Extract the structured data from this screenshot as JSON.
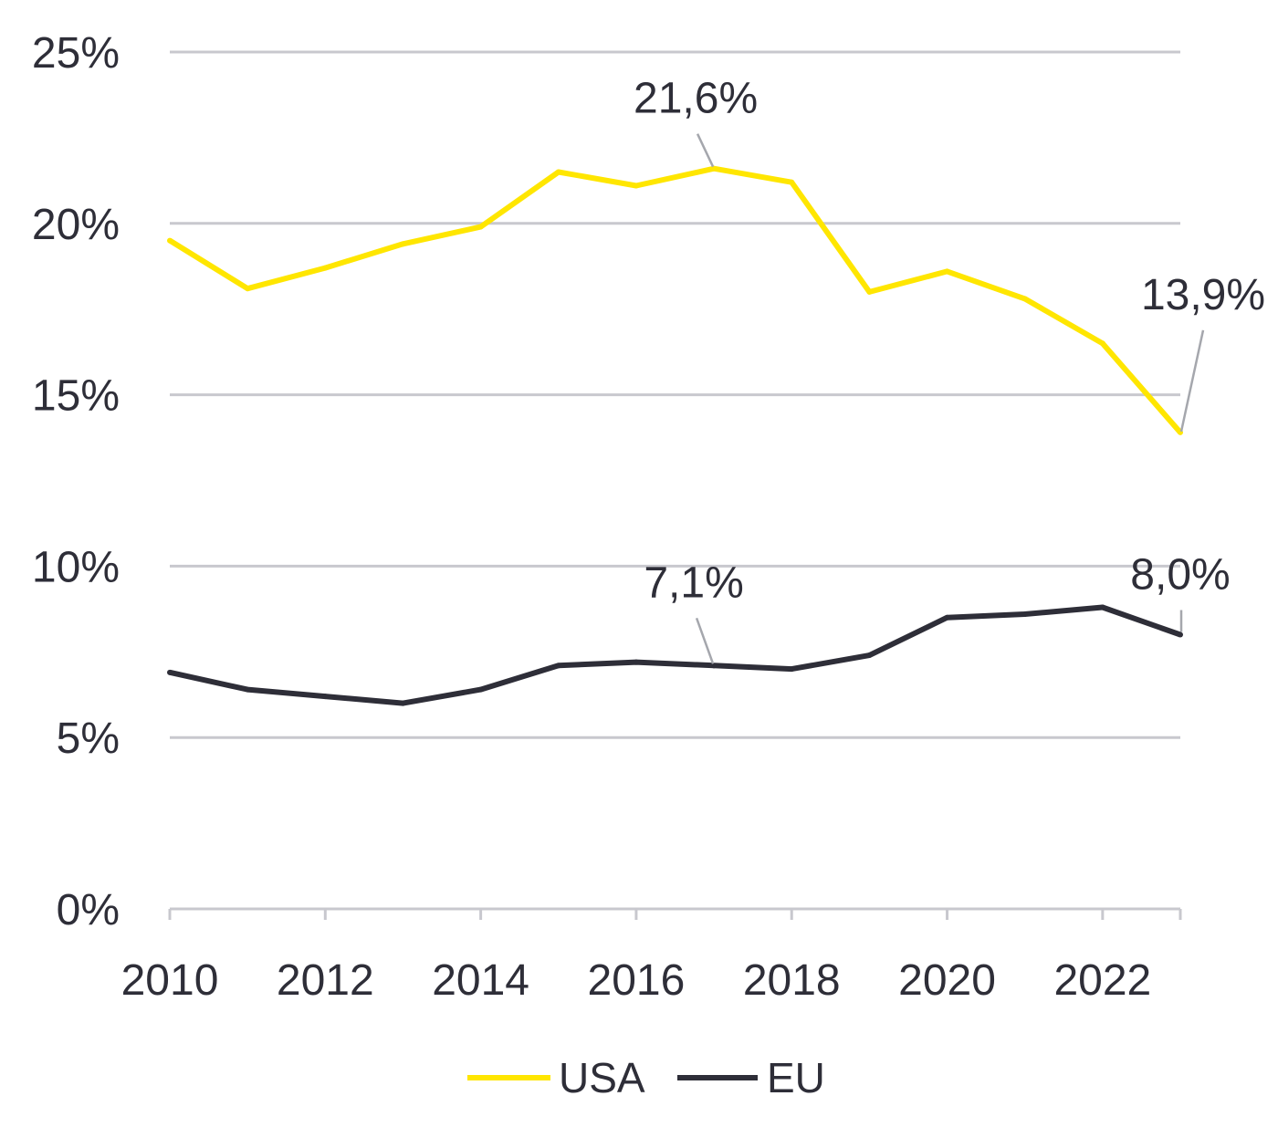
{
  "chart_data": {
    "type": "line",
    "title": "",
    "xlabel": "",
    "ylabel": "",
    "x": [
      2010,
      2011,
      2012,
      2013,
      2014,
      2015,
      2016,
      2017,
      2018,
      2019,
      2020,
      2021,
      2022,
      2023
    ],
    "series": [
      {
        "name": "USA",
        "color": "#FFE600",
        "values": [
          19.5,
          18.1,
          18.7,
          19.4,
          19.9,
          21.5,
          21.1,
          21.6,
          21.2,
          18.0,
          18.6,
          17.8,
          16.5,
          13.9
        ]
      },
      {
        "name": "EU",
        "color": "#2E2E38",
        "values": [
          6.9,
          6.4,
          6.2,
          6.0,
          6.4,
          7.1,
          7.2,
          7.1,
          7.0,
          7.4,
          8.5,
          8.6,
          8.8,
          8.0
        ]
      }
    ],
    "xlim": [
      2010,
      2023
    ],
    "ylim": [
      0,
      25
    ],
    "xticks": [
      2010,
      2012,
      2014,
      2016,
      2018,
      2020,
      2022
    ],
    "xtick_labels": [
      "2010",
      "2012",
      "2014",
      "2016",
      "2018",
      "2020",
      "2022"
    ],
    "yticks": [
      0,
      5,
      10,
      15,
      20,
      25
    ],
    "ytick_labels": [
      "0%",
      "5%",
      "10%",
      "15%",
      "20%",
      "25%"
    ],
    "grid": true,
    "legend": "bottom",
    "annotations": [
      {
        "series": 0,
        "x": 2017,
        "text": "21,6%"
      },
      {
        "series": 0,
        "x": 2023,
        "text": "13,9%"
      },
      {
        "series": 1,
        "x": 2017,
        "text": "7,1%"
      },
      {
        "series": 1,
        "x": 2023,
        "text": "8,0%"
      }
    ]
  },
  "colors": {
    "text": "#2E2E38",
    "grid": "#C8C8CE",
    "leader": "#A5A7AD"
  }
}
